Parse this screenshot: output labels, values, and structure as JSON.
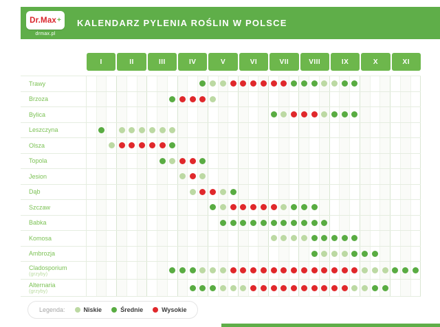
{
  "header": {
    "logo_brand": "Dr.Max",
    "logo_plus": "+",
    "logo_site": "drmax.pl",
    "title": "KALENDARZ PYLENIA ROŚLIN W POLSCE"
  },
  "colors": {
    "brand": "#5fae49",
    "month_cell": "#6db74c",
    "low": "#bcd9a3",
    "medium": "#59ac42",
    "high": "#e0282b",
    "grid": "#e5ede0",
    "row_label": "#7cc255"
  },
  "legend": {
    "caption": "Legenda:",
    "items": [
      {
        "label": "Niskie",
        "level": 1,
        "color": "#bcd9a3"
      },
      {
        "label": "Średnie",
        "level": 2,
        "color": "#59ac42"
      },
      {
        "label": "Wysokie",
        "level": 3,
        "color": "#e0282b"
      }
    ]
  },
  "chart_data": {
    "type": "heatmap",
    "title": "Kalendarz pylenia roślin w Polsce",
    "months": [
      "I",
      "II",
      "III",
      "IV",
      "V",
      "VI",
      "VII",
      "VIII",
      "IX",
      "X",
      "XI"
    ],
    "subcolumns_per_month": 3,
    "level_meaning": {
      "0": "brak",
      "1": "Niskie",
      "2": "Średnie",
      "3": "Wysokie"
    },
    "rows": [
      {
        "label": "Trawy",
        "sublabel": "",
        "values": [
          0,
          0,
          0,
          0,
          0,
          0,
          0,
          0,
          0,
          0,
          0,
          2,
          1,
          1,
          3,
          3,
          3,
          3,
          3,
          3,
          2,
          2,
          2,
          1,
          1,
          2,
          2,
          0,
          0,
          0,
          0,
          0,
          0
        ]
      },
      {
        "label": "Brzoza",
        "sublabel": "",
        "values": [
          0,
          0,
          0,
          0,
          0,
          0,
          0,
          0,
          2,
          3,
          3,
          3,
          1,
          0,
          0,
          0,
          0,
          0,
          0,
          0,
          0,
          0,
          0,
          0,
          0,
          0,
          0,
          0,
          0,
          0,
          0,
          0,
          0
        ]
      },
      {
        "label": "Bylica",
        "sublabel": "",
        "values": [
          0,
          0,
          0,
          0,
          0,
          0,
          0,
          0,
          0,
          0,
          0,
          0,
          0,
          0,
          0,
          0,
          0,
          0,
          2,
          1,
          3,
          3,
          3,
          1,
          2,
          2,
          2,
          0,
          0,
          0,
          0,
          0,
          0
        ]
      },
      {
        "label": "Leszczyna",
        "sublabel": "",
        "values": [
          0,
          2,
          0,
          1,
          1,
          1,
          1,
          1,
          1,
          0,
          0,
          0,
          0,
          0,
          0,
          0,
          0,
          0,
          0,
          0,
          0,
          0,
          0,
          0,
          0,
          0,
          0,
          0,
          0,
          0,
          0,
          0,
          0
        ]
      },
      {
        "label": "Olsza",
        "sublabel": "",
        "values": [
          0,
          0,
          1,
          3,
          3,
          3,
          3,
          3,
          2,
          0,
          0,
          0,
          0,
          0,
          0,
          0,
          0,
          0,
          0,
          0,
          0,
          0,
          0,
          0,
          0,
          0,
          0,
          0,
          0,
          0,
          0,
          0,
          0
        ]
      },
      {
        "label": "Topola",
        "sublabel": "",
        "values": [
          0,
          0,
          0,
          0,
          0,
          0,
          0,
          2,
          1,
          3,
          3,
          2,
          0,
          0,
          0,
          0,
          0,
          0,
          0,
          0,
          0,
          0,
          0,
          0,
          0,
          0,
          0,
          0,
          0,
          0,
          0,
          0,
          0
        ]
      },
      {
        "label": "Jesion",
        "sublabel": "",
        "values": [
          0,
          0,
          0,
          0,
          0,
          0,
          0,
          0,
          0,
          1,
          3,
          1,
          0,
          0,
          0,
          0,
          0,
          0,
          0,
          0,
          0,
          0,
          0,
          0,
          0,
          0,
          0,
          0,
          0,
          0,
          0,
          0,
          0
        ]
      },
      {
        "label": "Dąb",
        "sublabel": "",
        "values": [
          0,
          0,
          0,
          0,
          0,
          0,
          0,
          0,
          0,
          0,
          1,
          3,
          3,
          1,
          2,
          0,
          0,
          0,
          0,
          0,
          0,
          0,
          0,
          0,
          0,
          0,
          0,
          0,
          0,
          0,
          0,
          0,
          0
        ]
      },
      {
        "label": "Szczaw",
        "sublabel": "",
        "values": [
          0,
          0,
          0,
          0,
          0,
          0,
          0,
          0,
          0,
          0,
          0,
          0,
          2,
          1,
          3,
          3,
          3,
          3,
          3,
          1,
          2,
          2,
          2,
          0,
          0,
          0,
          0,
          0,
          0,
          0,
          0,
          0,
          0
        ]
      },
      {
        "label": "Babka",
        "sublabel": "",
        "values": [
          0,
          0,
          0,
          0,
          0,
          0,
          0,
          0,
          0,
          0,
          0,
          0,
          0,
          2,
          2,
          2,
          2,
          2,
          2,
          2,
          2,
          2,
          2,
          2,
          0,
          0,
          0,
          0,
          0,
          0,
          0,
          0,
          0
        ]
      },
      {
        "label": "Komosa",
        "sublabel": "",
        "values": [
          0,
          0,
          0,
          0,
          0,
          0,
          0,
          0,
          0,
          0,
          0,
          0,
          0,
          0,
          0,
          0,
          0,
          0,
          1,
          1,
          1,
          1,
          2,
          2,
          2,
          2,
          2,
          0,
          0,
          0,
          0,
          0,
          0
        ]
      },
      {
        "label": "Ambrozja",
        "sublabel": "",
        "values": [
          0,
          0,
          0,
          0,
          0,
          0,
          0,
          0,
          0,
          0,
          0,
          0,
          0,
          0,
          0,
          0,
          0,
          0,
          0,
          0,
          0,
          0,
          2,
          1,
          1,
          1,
          2,
          2,
          2,
          0,
          0,
          0,
          0
        ]
      },
      {
        "label": "Cladosporium",
        "sublabel": "(grzyby)",
        "values": [
          0,
          0,
          0,
          0,
          0,
          0,
          0,
          0,
          2,
          2,
          2,
          1,
          1,
          1,
          3,
          3,
          3,
          3,
          3,
          3,
          3,
          3,
          3,
          3,
          3,
          3,
          3,
          1,
          1,
          1,
          2,
          2,
          2
        ]
      },
      {
        "label": "Alternaria",
        "sublabel": "(grzyby)",
        "values": [
          0,
          0,
          0,
          0,
          0,
          0,
          0,
          0,
          0,
          0,
          2,
          2,
          2,
          1,
          1,
          1,
          3,
          3,
          3,
          3,
          3,
          3,
          3,
          3,
          3,
          3,
          1,
          1,
          2,
          2,
          0,
          0,
          0
        ]
      }
    ]
  }
}
